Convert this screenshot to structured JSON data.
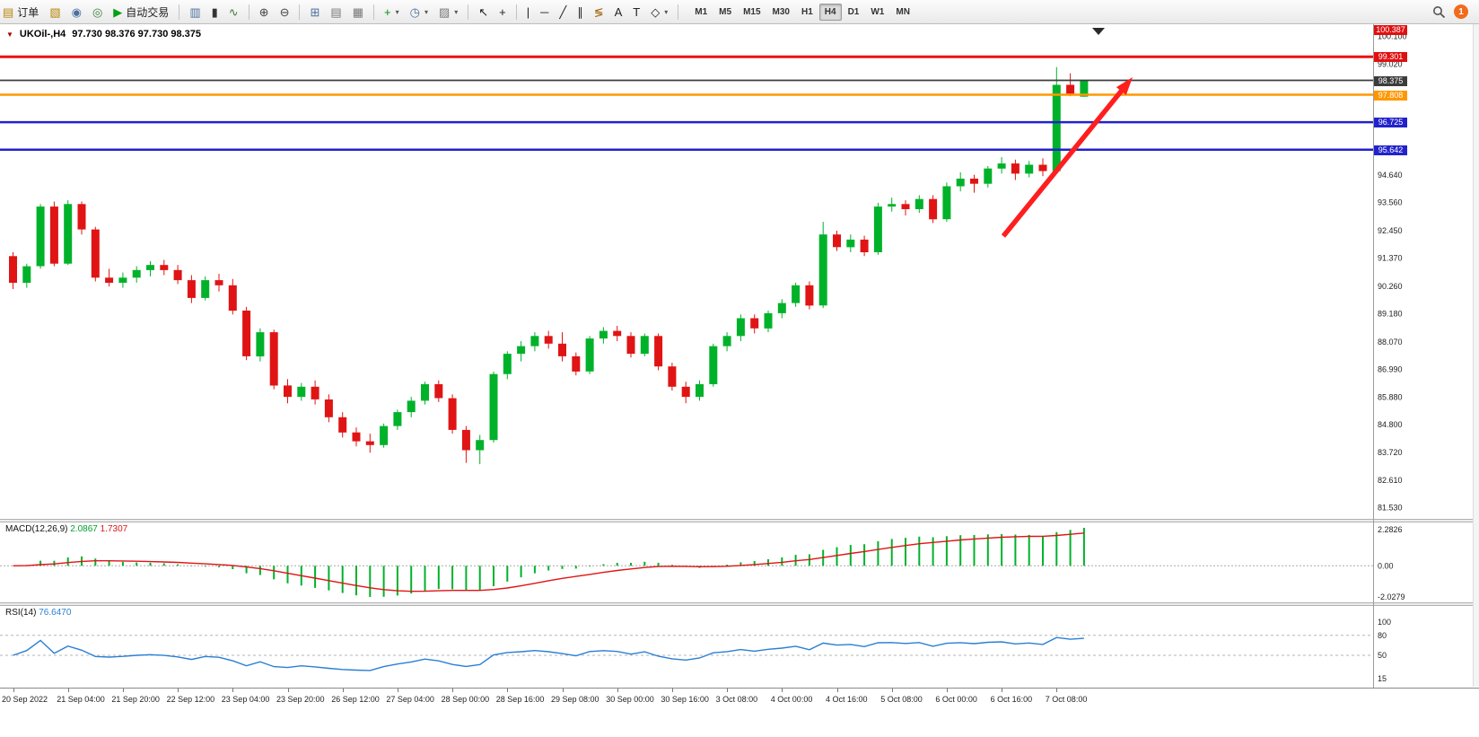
{
  "toolbar": {
    "new_order_label": "订单",
    "auto_trading_label": "自动交易",
    "notification_count": "1",
    "left_icons": [
      {
        "name": "new-chart-icon",
        "glyph": "▧",
        "color": "#b8860b"
      },
      {
        "name": "profiles-icon",
        "glyph": "◉",
        "color": "#4a6f9e"
      },
      {
        "name": "refresh-icon",
        "glyph": "◎",
        "color": "#3a7d3a"
      }
    ],
    "tool_icons": [
      {
        "name": "bar-chart-icon",
        "glyph": "▥",
        "color": "#4a6f9e"
      },
      {
        "name": "candlestick-chart-icon",
        "glyph": "▮",
        "color": "#333333"
      },
      {
        "name": "line-chart-icon",
        "glyph": "∿",
        "color": "#3a7d3a"
      },
      {
        "sep": true
      },
      {
        "name": "zoom-in-icon",
        "glyph": "⊕",
        "color": "#444444"
      },
      {
        "name": "zoom-out-icon",
        "glyph": "⊖",
        "color": "#444444"
      },
      {
        "sep": true
      },
      {
        "name": "tile-windows-icon",
        "glyph": "⊞",
        "color": "#4a6f9e"
      },
      {
        "name": "data-window-icon",
        "glyph": "▤",
        "color": "#777777"
      },
      {
        "name": "strategy-tester-icon",
        "glyph": "▦",
        "color": "#777777"
      },
      {
        "sep": true
      },
      {
        "name": "add-indicator-icon",
        "glyph": "+",
        "color": "#00940c",
        "dropdown": true
      },
      {
        "name": "period-selector-icon",
        "glyph": "◷",
        "color": "#4a6f9e",
        "dropdown": true
      },
      {
        "name": "template-icon",
        "glyph": "▨",
        "color": "#777777",
        "dropdown": true
      },
      {
        "sep": true
      },
      {
        "name": "cursor-icon",
        "glyph": "↖",
        "color": "#222222"
      },
      {
        "name": "crosshair-icon",
        "glyph": "+",
        "color": "#222222"
      },
      {
        "sep": true
      },
      {
        "name": "vertical-line-icon",
        "glyph": "|",
        "color": "#222222"
      },
      {
        "name": "horizontal-line-icon",
        "glyph": "─",
        "color": "#222222"
      },
      {
        "name": "trendline-icon",
        "glyph": "╱",
        "color": "#222222"
      },
      {
        "name": "channel-icon",
        "glyph": "∥",
        "color": "#222222"
      },
      {
        "name": "fibonacci-icon",
        "glyph": "≶",
        "color": "#a06000"
      },
      {
        "name": "text-icon",
        "glyph": "A",
        "color": "#222222"
      },
      {
        "name": "label-icon",
        "glyph": "T",
        "color": "#222222"
      },
      {
        "name": "shapes-icon",
        "glyph": "◇",
        "color": "#222222",
        "dropdown": true
      }
    ],
    "timeframes": [
      "M1",
      "M5",
      "M15",
      "M30",
      "H1",
      "H4",
      "D1",
      "W1",
      "MN"
    ],
    "active_timeframe": "H4"
  },
  "chart": {
    "symbol_title": "UKOil-,H4",
    "ohlc_text": "97.730 98.376 97.730 98.375",
    "price_ticks": [
      {
        "label": "100.100",
        "price": 100.1
      },
      {
        "label": "99.020",
        "price": 99.02
      },
      {
        "label": "94.640",
        "price": 94.64
      },
      {
        "label": "93.560",
        "price": 93.56
      },
      {
        "label": "92.450",
        "price": 92.45
      },
      {
        "label": "91.370",
        "price": 91.37
      },
      {
        "label": "90.260",
        "price": 90.26
      },
      {
        "label": "89.180",
        "price": 89.18
      },
      {
        "label": "88.070",
        "price": 88.07
      },
      {
        "label": "86.990",
        "price": 86.99
      },
      {
        "label": "85.880",
        "price": 85.88
      },
      {
        "label": "84.800",
        "price": 84.8
      },
      {
        "label": "83.720",
        "price": 83.72
      },
      {
        "label": "82.610",
        "price": 82.61
      },
      {
        "label": "81.530",
        "price": 81.53
      }
    ],
    "price_markers": [
      {
        "label": "100.387",
        "color": "#e01010",
        "pinned": true
      },
      {
        "label": "99.301",
        "price": 99.301,
        "color": "#e01010"
      },
      {
        "label": "98.375",
        "price": 98.375,
        "color": "#3c3c3c"
      },
      {
        "label": "97.808",
        "price": 97.808,
        "color": "#ff9800"
      },
      {
        "label": "96.725",
        "price": 96.725,
        "color": "#2222cc"
      },
      {
        "label": "95.642",
        "price": 95.642,
        "color": "#2222cc"
      }
    ]
  },
  "macd_panel": {
    "label": "MACD(12,26,9)",
    "value_main": "2.0867",
    "value_signal": "1.7307",
    "scale_top": "2.2826",
    "scale_zero": "0.00",
    "scale_bottom": "-2.0279"
  },
  "rsi_panel": {
    "label": "RSI(14)",
    "value": "76.6470",
    "scale": [
      {
        "label": "100",
        "value": 100
      },
      {
        "label": "80",
        "value": 80
      },
      {
        "label": "50",
        "value": 50
      },
      {
        "label": "15",
        "value": 15
      }
    ]
  },
  "time_axis": [
    "20 Sep 2022",
    "21 Sep 04:00",
    "21 Sep 20:00",
    "22 Sep 12:00",
    "23 Sep 04:00",
    "23 Sep 20:00",
    "26 Sep 12:00",
    "27 Sep 04:00",
    "28 Sep 00:00",
    "28 Sep 16:00",
    "29 Sep 08:00",
    "30 Sep 00:00",
    "30 Sep 16:00",
    "3 Oct 08:00",
    "4 Oct 00:00",
    "4 Oct 16:00",
    "5 Oct 08:00",
    "6 Oct 00:00",
    "6 Oct 16:00",
    "7 Oct 08:00"
  ],
  "annotation": {
    "type": "arrow",
    "color": "#ff1e1e",
    "from": [
      1118,
      236
    ],
    "to": [
      1262,
      59
    ]
  },
  "chart_data": {
    "type": "candlestick",
    "title": "UKOil-,H4",
    "last_quote": {
      "open": "97.730",
      "high": "98.376",
      "low": "97.730",
      "close": "98.375"
    },
    "ylim": [
      81.2,
      100.48
    ],
    "colors": {
      "bull": "#00b22a",
      "bear": "#e01414",
      "macd_hist": "#00b22a",
      "macd_signal": "#e01414",
      "rsi_line": "#2a7fd4"
    },
    "levels": [
      {
        "price": 99.301,
        "color": "#ee1111",
        "width": 3
      },
      {
        "price": 98.375,
        "color": "#3c3c3c",
        "width": 1.8
      },
      {
        "price": 97.808,
        "color": "#ff9800",
        "width": 2.5
      },
      {
        "price": 96.725,
        "color": "#2222cc",
        "width": 2.5
      },
      {
        "price": 95.642,
        "color": "#2222cc",
        "width": 2.5
      }
    ],
    "ohlc": [
      [
        91.45,
        91.6,
        90.15,
        90.4
      ],
      [
        90.4,
        91.15,
        90.2,
        91.05
      ],
      [
        91.05,
        93.5,
        90.95,
        93.4
      ],
      [
        93.4,
        93.6,
        91.05,
        91.15
      ],
      [
        91.15,
        93.65,
        91.1,
        93.5
      ],
      [
        93.5,
        93.6,
        92.3,
        92.5
      ],
      [
        92.5,
        92.6,
        90.45,
        90.6
      ],
      [
        90.6,
        90.95,
        90.25,
        90.4
      ],
      [
        90.4,
        90.8,
        90.2,
        90.6
      ],
      [
        90.6,
        91.05,
        90.4,
        90.9
      ],
      [
        90.9,
        91.25,
        90.65,
        91.1
      ],
      [
        91.1,
        91.3,
        90.7,
        90.9
      ],
      [
        90.9,
        91.1,
        90.35,
        90.5
      ],
      [
        90.5,
        90.7,
        89.6,
        89.8
      ],
      [
        89.8,
        90.65,
        89.7,
        90.5
      ],
      [
        90.5,
        90.75,
        90.05,
        90.3
      ],
      [
        90.3,
        90.55,
        89.15,
        89.3
      ],
      [
        89.3,
        89.45,
        87.35,
        87.5
      ],
      [
        87.5,
        88.6,
        87.3,
        88.45
      ],
      [
        88.45,
        88.55,
        86.2,
        86.35
      ],
      [
        86.35,
        86.6,
        85.65,
        85.9
      ],
      [
        85.9,
        86.45,
        85.75,
        86.3
      ],
      [
        86.3,
        86.55,
        85.6,
        85.8
      ],
      [
        85.8,
        86.0,
        84.9,
        85.1
      ],
      [
        85.1,
        85.3,
        84.3,
        84.5
      ],
      [
        84.5,
        84.7,
        83.95,
        84.15
      ],
      [
        84.15,
        84.45,
        83.7,
        84.0
      ],
      [
        84.0,
        84.85,
        83.9,
        84.75
      ],
      [
        84.75,
        85.4,
        84.6,
        85.3
      ],
      [
        85.3,
        85.9,
        85.1,
        85.75
      ],
      [
        85.75,
        86.5,
        85.6,
        86.4
      ],
      [
        86.4,
        86.55,
        85.7,
        85.85
      ],
      [
        85.85,
        86.0,
        84.45,
        84.6
      ],
      [
        84.6,
        84.75,
        83.3,
        83.8
      ],
      [
        83.8,
        84.4,
        83.25,
        84.2
      ],
      [
        84.2,
        86.9,
        84.1,
        86.8
      ],
      [
        86.8,
        87.7,
        86.6,
        87.6
      ],
      [
        87.6,
        88.1,
        87.3,
        87.9
      ],
      [
        87.9,
        88.45,
        87.7,
        88.3
      ],
      [
        88.3,
        88.5,
        87.8,
        88.0
      ],
      [
        88.0,
        88.45,
        87.3,
        87.5
      ],
      [
        87.5,
        87.65,
        86.75,
        86.9
      ],
      [
        86.9,
        88.3,
        86.8,
        88.2
      ],
      [
        88.2,
        88.65,
        88.0,
        88.5
      ],
      [
        88.5,
        88.7,
        88.1,
        88.3
      ],
      [
        88.3,
        88.45,
        87.45,
        87.6
      ],
      [
        87.6,
        88.4,
        87.5,
        88.3
      ],
      [
        88.3,
        88.4,
        86.95,
        87.1
      ],
      [
        87.1,
        87.25,
        86.15,
        86.3
      ],
      [
        86.3,
        86.5,
        85.65,
        85.9
      ],
      [
        85.9,
        86.55,
        85.75,
        86.4
      ],
      [
        86.4,
        88.0,
        86.3,
        87.9
      ],
      [
        87.9,
        88.45,
        87.7,
        88.3
      ],
      [
        88.3,
        89.15,
        88.1,
        89.0
      ],
      [
        89.0,
        89.15,
        88.4,
        88.6
      ],
      [
        88.6,
        89.3,
        88.45,
        89.2
      ],
      [
        89.2,
        89.75,
        89.0,
        89.6
      ],
      [
        89.6,
        90.4,
        89.45,
        90.3
      ],
      [
        90.3,
        90.45,
        89.35,
        89.5
      ],
      [
        89.5,
        92.8,
        89.4,
        92.3
      ],
      [
        92.3,
        92.45,
        91.65,
        91.8
      ],
      [
        91.8,
        92.3,
        91.6,
        92.1
      ],
      [
        92.1,
        92.25,
        91.45,
        91.6
      ],
      [
        91.6,
        93.55,
        91.5,
        93.4
      ],
      [
        93.4,
        93.75,
        93.2,
        93.5
      ],
      [
        93.5,
        93.65,
        93.05,
        93.3
      ],
      [
        93.3,
        93.85,
        93.15,
        93.7
      ],
      [
        93.7,
        93.85,
        92.75,
        92.9
      ],
      [
        92.9,
        94.35,
        92.8,
        94.2
      ],
      [
        94.2,
        94.75,
        94.0,
        94.5
      ],
      [
        94.5,
        94.65,
        93.95,
        94.3
      ],
      [
        94.3,
        95.0,
        94.15,
        94.9
      ],
      [
        94.9,
        95.35,
        94.7,
        95.1
      ],
      [
        95.1,
        95.25,
        94.45,
        94.7
      ],
      [
        94.7,
        95.2,
        94.55,
        95.05
      ],
      [
        95.05,
        95.3,
        94.6,
        94.8
      ],
      [
        94.8,
        98.9,
        94.7,
        98.2
      ],
      [
        98.2,
        98.65,
        97.75,
        97.85
      ],
      [
        97.73,
        98.376,
        97.73,
        98.375
      ]
    ],
    "indicators": [
      {
        "type": "macd",
        "params": [
          12,
          26,
          9
        ],
        "display_values": [
          2.0867,
          1.7307
        ],
        "scale": [
          2.2826,
          0.0,
          -2.0279
        ]
      },
      {
        "type": "rsi",
        "params": [
          14
        ],
        "display_value": 76.647,
        "levels": [
          80,
          50
        ]
      }
    ]
  }
}
